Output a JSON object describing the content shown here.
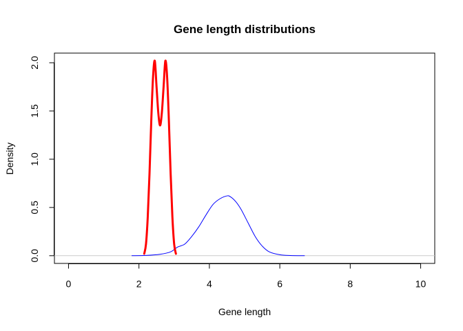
{
  "chart_data": {
    "type": "line",
    "title": "Gene length distributions",
    "xlabel": "Gene length",
    "ylabel": "Density",
    "xlim": [
      -0.4,
      10.4
    ],
    "ylim": [
      -0.08,
      2.1
    ],
    "xticks": [
      0,
      2,
      4,
      6,
      8,
      10
    ],
    "xtick_labels": [
      "0",
      "2",
      "4",
      "6",
      "8",
      "10"
    ],
    "yticks": [
      0.0,
      0.5,
      1.0,
      1.5,
      2.0
    ],
    "ytick_labels": [
      "0.0",
      "0.5",
      "1.0",
      "1.5",
      "2.0"
    ],
    "baseline": 0,
    "grid": false,
    "series": [
      {
        "color": "#0000FF",
        "line_width": 1,
        "x": [
          1.8,
          2.2,
          2.6,
          2.9,
          3.1,
          3.3,
          3.5,
          3.7,
          3.9,
          4.1,
          4.3,
          4.5,
          4.6,
          4.75,
          4.9,
          5.1,
          5.3,
          5.5,
          5.7,
          6.0,
          6.3,
          6.7
        ],
        "y": [
          0.0,
          0.003,
          0.015,
          0.04,
          0.09,
          0.12,
          0.2,
          0.3,
          0.42,
          0.53,
          0.59,
          0.62,
          0.61,
          0.56,
          0.48,
          0.34,
          0.2,
          0.1,
          0.04,
          0.01,
          0.002,
          0.0
        ]
      },
      {
        "color": "#FF0000",
        "line_width": 3,
        "x": [
          2.15,
          2.2,
          2.25,
          2.3,
          2.35,
          2.4,
          2.45,
          2.5,
          2.55,
          2.6,
          2.65,
          2.7,
          2.75,
          2.8,
          2.85,
          2.9,
          2.95,
          3.0,
          3.05
        ],
        "y": [
          0.02,
          0.12,
          0.4,
          0.85,
          1.4,
          1.85,
          2.02,
          1.75,
          1.48,
          1.35,
          1.48,
          1.75,
          2.02,
          1.85,
          1.4,
          0.85,
          0.4,
          0.12,
          0.02
        ]
      }
    ]
  }
}
